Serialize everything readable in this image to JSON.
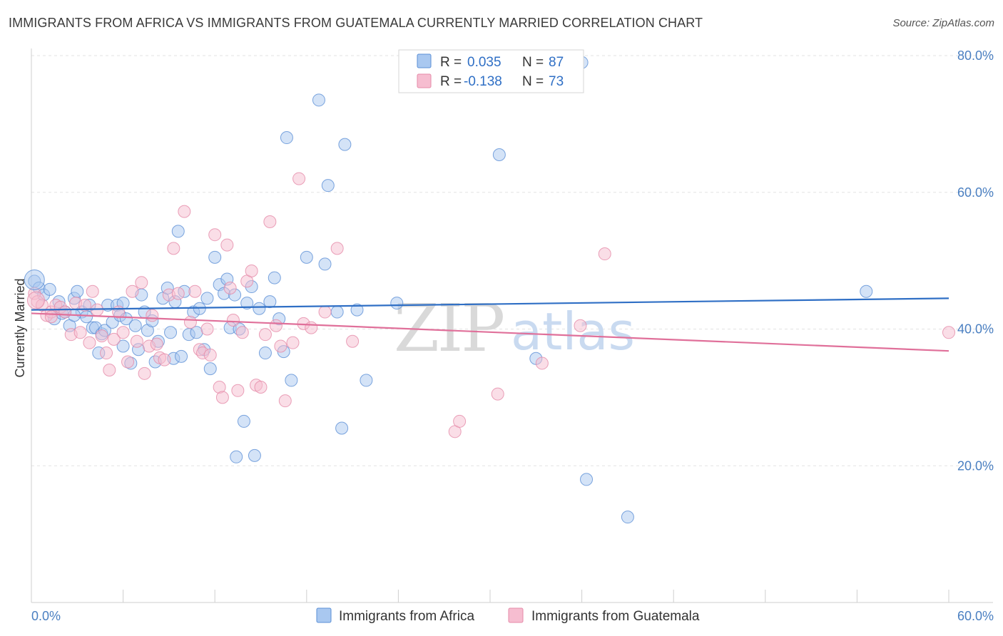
{
  "title": "IMMIGRANTS FROM AFRICA VS IMMIGRANTS FROM GUATEMALA CURRENTLY MARRIED CORRELATION CHART",
  "source": "Source: ZipAtlas.com",
  "watermark": {
    "zip": "ZIP",
    "atlas": "atlas"
  },
  "colors": {
    "africa_fill": "#a9c8f0",
    "africa_stroke": "#5b8fd6",
    "africa_line": "#2f6fc5",
    "guatemala_fill": "#f6bdd0",
    "guatemala_stroke": "#e58aa8",
    "guatemala_line": "#e0709a",
    "grid": "#e3e3e3",
    "axis_text": "#4a7fc1"
  },
  "legend": {
    "rows": [
      {
        "r_label": "R =",
        "r_value": "0.035",
        "n_label": "N =",
        "n_value": "87"
      },
      {
        "r_label": "R =",
        "r_value": "-0.138",
        "n_label": "N =",
        "n_value": "73"
      }
    ]
  },
  "chart_data": {
    "type": "scatter",
    "title": "IMMIGRANTS FROM AFRICA VS IMMIGRANTS FROM GUATEMALA CURRENTLY MARRIED CORRELATION CHART",
    "xlabel": "",
    "ylabel": "Currently Married",
    "xlim": [
      0,
      60
    ],
    "ylim": [
      0,
      80
    ],
    "x_tick_labels": [
      "0.0%",
      "60.0%"
    ],
    "y_ticks": [
      20,
      40,
      60,
      80
    ],
    "y_tick_labels": [
      "20.0%",
      "40.0%",
      "60.0%",
      "80.0%"
    ],
    "grid": true,
    "legend_position": "top-center",
    "series": [
      {
        "name": "Immigrants from Africa",
        "r": 0.035,
        "n": 87,
        "trend": {
          "x": [
            0,
            60
          ],
          "y": [
            42.8,
            44.5
          ]
        },
        "points": [
          [
            0.2,
            47.0
          ],
          [
            0.5,
            46.0
          ],
          [
            0.8,
            45.0
          ],
          [
            1.2,
            45.8
          ],
          [
            1.5,
            41.5
          ],
          [
            1.8,
            44.0
          ],
          [
            2.0,
            42.3
          ],
          [
            2.2,
            42.5
          ],
          [
            2.5,
            40.5
          ],
          [
            2.8,
            44.5
          ],
          [
            3.0,
            45.5
          ],
          [
            3.3,
            42.5
          ],
          [
            3.6,
            41.8
          ],
          [
            3.8,
            43.5
          ],
          [
            4.0,
            40.2
          ],
          [
            4.2,
            40.2
          ],
          [
            4.4,
            36.5
          ],
          [
            4.6,
            39.3
          ],
          [
            4.8,
            39.8
          ],
          [
            5.0,
            43.5
          ],
          [
            5.3,
            41.0
          ],
          [
            5.6,
            43.5
          ],
          [
            5.8,
            42.0
          ],
          [
            6.0,
            37.5
          ],
          [
            6.2,
            41.5
          ],
          [
            6.5,
            35.0
          ],
          [
            6.8,
            40.5
          ],
          [
            7.0,
            37.0
          ],
          [
            7.2,
            45.0
          ],
          [
            7.4,
            42.5
          ],
          [
            7.6,
            39.8
          ],
          [
            7.9,
            41.2
          ],
          [
            8.1,
            35.2
          ],
          [
            8.3,
            38.2
          ],
          [
            8.6,
            44.5
          ],
          [
            8.9,
            46.0
          ],
          [
            9.1,
            39.5
          ],
          [
            9.3,
            35.7
          ],
          [
            9.6,
            54.3
          ],
          [
            9.8,
            36.0
          ],
          [
            10.0,
            45.5
          ],
          [
            10.3,
            39.2
          ],
          [
            10.6,
            42.5
          ],
          [
            10.8,
            39.5
          ],
          [
            11.0,
            43.0
          ],
          [
            11.3,
            37.0
          ],
          [
            11.5,
            44.5
          ],
          [
            11.7,
            34.2
          ],
          [
            12.0,
            50.5
          ],
          [
            12.3,
            46.5
          ],
          [
            12.6,
            45.2
          ],
          [
            12.8,
            47.3
          ],
          [
            13.0,
            40.2
          ],
          [
            13.3,
            45.0
          ],
          [
            13.6,
            40.0
          ],
          [
            13.9,
            26.5
          ],
          [
            14.1,
            43.8
          ],
          [
            14.4,
            46.2
          ],
          [
            14.6,
            21.5
          ],
          [
            14.9,
            43.0
          ],
          [
            15.3,
            36.5
          ],
          [
            15.6,
            44.0
          ],
          [
            15.9,
            47.5
          ],
          [
            16.2,
            41.5
          ],
          [
            16.7,
            68.0
          ],
          [
            17.0,
            32.5
          ],
          [
            18.0,
            50.5
          ],
          [
            18.8,
            73.5
          ],
          [
            19.2,
            49.5
          ],
          [
            19.4,
            61.0
          ],
          [
            20.0,
            42.5
          ],
          [
            20.3,
            25.5
          ],
          [
            20.5,
            67.0
          ],
          [
            21.3,
            42.8
          ],
          [
            21.9,
            32.5
          ],
          [
            23.9,
            43.8
          ],
          [
            30.6,
            65.5
          ],
          [
            33.0,
            35.7
          ],
          [
            36.0,
            79.0
          ],
          [
            36.3,
            18.0
          ],
          [
            39.0,
            12.5
          ],
          [
            54.6,
            45.5
          ],
          [
            13.4,
            21.3
          ],
          [
            16.5,
            36.7
          ],
          [
            2.8,
            42.0
          ],
          [
            6.0,
            43.8
          ],
          [
            9.4,
            44.0
          ]
        ]
      },
      {
        "name": "Immigrants from Guatemala",
        "r": -0.138,
        "n": 73,
        "trend": {
          "x": [
            0,
            60
          ],
          "y": [
            42.3,
            36.8
          ]
        },
        "points": [
          [
            0.2,
            45.2
          ],
          [
            0.4,
            44.0
          ],
          [
            0.7,
            43.5
          ],
          [
            1.0,
            42.0
          ],
          [
            1.3,
            42.5
          ],
          [
            1.6,
            43.5
          ],
          [
            1.9,
            43.2
          ],
          [
            2.2,
            42.5
          ],
          [
            2.6,
            39.2
          ],
          [
            2.9,
            43.8
          ],
          [
            3.2,
            39.5
          ],
          [
            3.5,
            43.5
          ],
          [
            3.8,
            38.0
          ],
          [
            4.0,
            45.5
          ],
          [
            4.3,
            42.8
          ],
          [
            4.6,
            39.0
          ],
          [
            4.9,
            36.5
          ],
          [
            5.1,
            34.0
          ],
          [
            5.4,
            38.5
          ],
          [
            5.7,
            42.5
          ],
          [
            6.0,
            39.5
          ],
          [
            6.3,
            35.2
          ],
          [
            6.6,
            45.5
          ],
          [
            6.9,
            38.2
          ],
          [
            7.2,
            46.8
          ],
          [
            7.4,
            33.5
          ],
          [
            7.7,
            37.5
          ],
          [
            7.9,
            42.0
          ],
          [
            8.2,
            37.8
          ],
          [
            8.4,
            35.8
          ],
          [
            8.7,
            35.5
          ],
          [
            9.0,
            45.0
          ],
          [
            9.3,
            51.8
          ],
          [
            9.6,
            45.2
          ],
          [
            10.0,
            57.2
          ],
          [
            10.4,
            41.0
          ],
          [
            10.7,
            45.5
          ],
          [
            11.0,
            37.0
          ],
          [
            11.2,
            36.5
          ],
          [
            11.5,
            40.0
          ],
          [
            11.7,
            36.2
          ],
          [
            12.0,
            53.8
          ],
          [
            12.3,
            31.5
          ],
          [
            12.5,
            30.0
          ],
          [
            12.8,
            52.3
          ],
          [
            13.0,
            46.0
          ],
          [
            13.2,
            41.3
          ],
          [
            13.5,
            31.0
          ],
          [
            13.8,
            39.5
          ],
          [
            14.1,
            47.0
          ],
          [
            14.4,
            48.5
          ],
          [
            14.7,
            31.8
          ],
          [
            15.0,
            31.5
          ],
          [
            15.3,
            39.2
          ],
          [
            15.6,
            55.7
          ],
          [
            16.0,
            40.5
          ],
          [
            16.3,
            37.5
          ],
          [
            16.6,
            29.5
          ],
          [
            17.1,
            38.0
          ],
          [
            17.5,
            62.0
          ],
          [
            17.8,
            40.8
          ],
          [
            18.3,
            40.2
          ],
          [
            19.2,
            42.5
          ],
          [
            20.0,
            51.8
          ],
          [
            21.0,
            38.2
          ],
          [
            27.7,
            25.0
          ],
          [
            28.0,
            26.5
          ],
          [
            30.5,
            30.5
          ],
          [
            33.4,
            35.0
          ],
          [
            35.9,
            40.5
          ],
          [
            37.5,
            51.0
          ],
          [
            60.0,
            39.5
          ],
          [
            1.3,
            41.8
          ]
        ]
      }
    ]
  },
  "bottom_legend": [
    {
      "label": "Immigrants from Africa"
    },
    {
      "label": "Immigrants from Guatemala"
    }
  ]
}
